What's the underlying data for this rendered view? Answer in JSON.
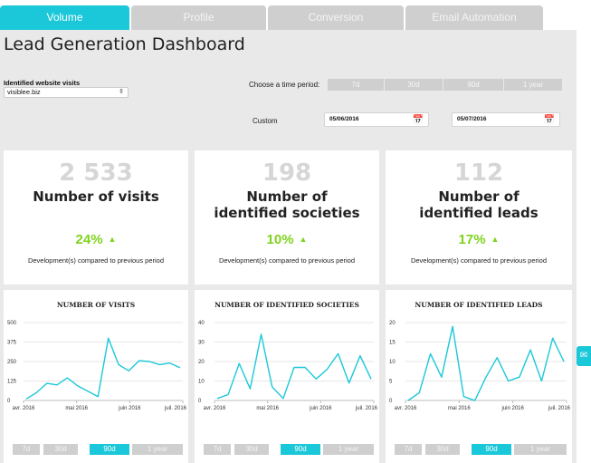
{
  "tabs": [
    "Volume",
    "Profile",
    "Conversion",
    "Email Automation"
  ],
  "active_tab": 0,
  "header": {
    "title": "Lead Generation Dashboard"
  },
  "filters": {
    "sites_label": "Identified website visits",
    "site_value": "visiblee.biz",
    "period_label": "Choose a time period:",
    "period_options": [
      "7d",
      "30d",
      "90d",
      "1 year"
    ],
    "custom_label": "Custom",
    "date_from": "05/06/2016",
    "date_to": "05/07/2016"
  },
  "kpis": [
    {
      "value": "2 533",
      "label": "Number of visits",
      "change": "24%",
      "note": "Development(s) compared to previous period"
    },
    {
      "value": "198",
      "label": "Number of identified societies",
      "change": "10%",
      "note": "Development(s) compared to previous period"
    },
    {
      "value": "112",
      "label": "Number of identified leads",
      "change": "17%",
      "note": "Development(s) compared to previous period"
    }
  ],
  "chart_buttons": [
    "7d",
    "30d",
    "90d",
    "1 year"
  ],
  "colors": {
    "accent": "#1bc8d9",
    "positive": "#7fd31d",
    "muted": "#cfcfcf"
  },
  "icons": {
    "calendar": "calendar-icon",
    "mail": "mail-icon",
    "up": "triangle-up-icon"
  },
  "chart_data": [
    {
      "type": "line",
      "title": "NUMBER OF VISITS",
      "x_tick_labels": [
        "avr. 2016",
        "mai 2016",
        "juin 2016",
        "juil. 2016"
      ],
      "y_ticks": [
        0,
        125,
        250,
        375,
        500
      ],
      "ylim": [
        0,
        500
      ],
      "values": [
        10,
        50,
        110,
        100,
        145,
        95,
        60,
        25,
        400,
        230,
        190,
        255,
        250,
        230,
        240,
        210
      ],
      "grid": true,
      "active_range": "90d"
    },
    {
      "type": "line",
      "title": "NUMBER OF IDENTIFIED SOCIETIES",
      "x_tick_labels": [
        "avr. 2016",
        "mai 2016",
        "juin 2016",
        "juil. 2016"
      ],
      "y_ticks": [
        0,
        10,
        20,
        30,
        40
      ],
      "ylim": [
        0,
        40
      ],
      "values": [
        1,
        3,
        19,
        6,
        34,
        7,
        1,
        17,
        17,
        11,
        16,
        24,
        9,
        23,
        11
      ],
      "grid": true,
      "active_range": "90d"
    },
    {
      "type": "line",
      "title": "NUMBER OF IDENTIFIED LEADS",
      "x_tick_labels": [
        "avr. 2016",
        "mai 2016",
        "juin 2016",
        "juil. 2016"
      ],
      "y_ticks": [
        0,
        5,
        10,
        15,
        20
      ],
      "ylim": [
        0,
        20
      ],
      "values": [
        0,
        2,
        12,
        6,
        19,
        1,
        0,
        6,
        11,
        5,
        6,
        13,
        5,
        16,
        10
      ],
      "grid": true,
      "active_range": "90d"
    }
  ]
}
